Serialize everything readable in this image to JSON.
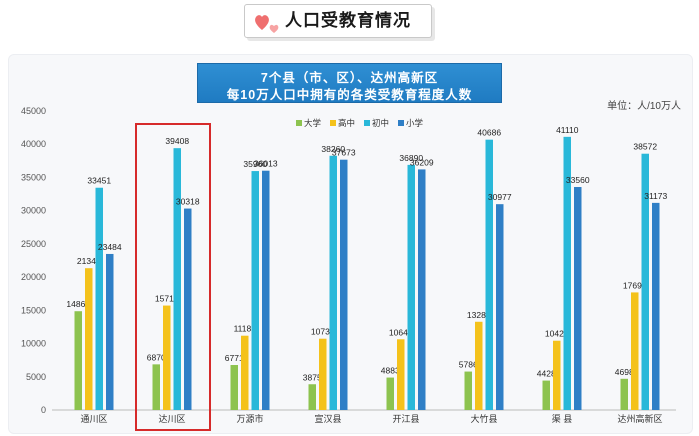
{
  "header": {
    "title": "人口受教育情况"
  },
  "chart_data": {
    "type": "bar",
    "title_lines": [
      "7个县（市、区）、达州高新区",
      "每10万人口中拥有的各类受教育程度人数"
    ],
    "unit": "单位：人/10万人",
    "ylim": [
      0,
      45000
    ],
    "yticks": [
      0,
      5000,
      10000,
      15000,
      20000,
      25000,
      30000,
      35000,
      40000,
      45000
    ],
    "legend_position": "top-center",
    "grid": false,
    "highlight_category": "达川区",
    "categories": [
      "通川区",
      "达川区",
      "万源市",
      "宣汉县",
      "开江县",
      "大竹县",
      "渠  县",
      "达州高新区"
    ],
    "series": [
      {
        "name": "大学",
        "color": "#8dc34f",
        "values": [
          14867,
          6870,
          6771,
          3875,
          4883,
          5786,
          4428,
          4698
        ]
      },
      {
        "name": "高中",
        "color": "#f4c21b",
        "values": [
          21340,
          15719,
          11180,
          10730,
          10642,
          13280,
          10426,
          17696
        ]
      },
      {
        "name": "初中",
        "color": "#29b8d9",
        "values": [
          33451,
          39408,
          35960,
          38260,
          36890,
          40686,
          41110,
          38572
        ]
      },
      {
        "name": "小学",
        "color": "#2f7fc6",
        "values": [
          23484,
          30318,
          36013,
          37673,
          36209,
          30977,
          33560,
          31173
        ]
      }
    ]
  }
}
